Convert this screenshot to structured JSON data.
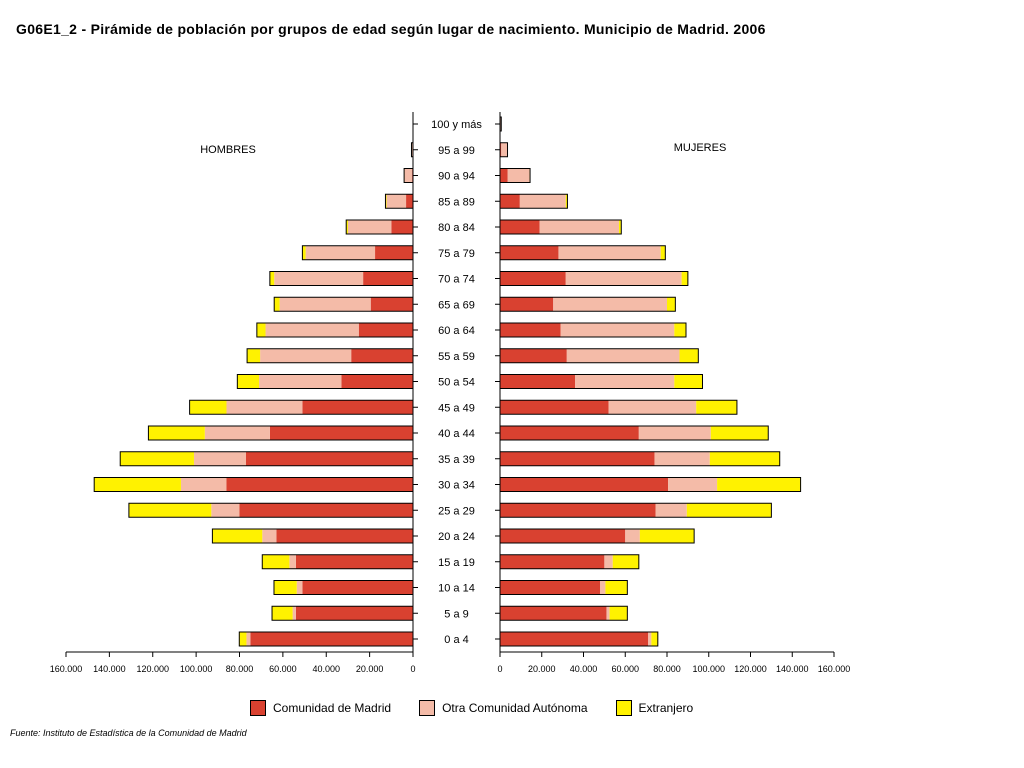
{
  "title": "G06E1_2 - Pirámide de población por grupos de edad según lugar de nacimiento. Municipio de Madrid. 2006",
  "source": "Fuente: Instituto de Estadística de la Comunidad de Madrid",
  "colors": {
    "madrid": "#D94130",
    "otra": "#F4BBA8",
    "extranjero": "#FFF200",
    "outline": "#000000"
  },
  "chart_data": {
    "type": "bar",
    "subtype": "population-pyramid",
    "title": "G06E1_2 - Pirámide de población por grupos de edad según lugar de nacimiento. Municipio de Madrid. 2006",
    "left_label": "HOMBRES",
    "right_label": "MUJERES",
    "categories": [
      "100 y más",
      "95 a 99",
      "90 a 94",
      "85 a 89",
      "80 a 84",
      "75 a 79",
      "70 a 74",
      "65 a 69",
      "60 a 64",
      "55 a 59",
      "50 a 54",
      "45 a 49",
      "40 a  44",
      "35 a 39",
      "30 a 34",
      "25 a 29",
      "20 a 24",
      "15 a 19",
      "10 a 14",
      "5 a 9",
      "0 a 4"
    ],
    "series_names": [
      "Comunidad de Madrid",
      "Otra Comunidad Autónoma",
      "Extranjero"
    ],
    "hombres": {
      "madrid": [
        0,
        0,
        400,
        3200,
        10000,
        17500,
        23000,
        19500,
        25000,
        28500,
        33000,
        51000,
        66000,
        77000,
        86000,
        80000,
        63000,
        54000,
        51000,
        54000,
        75000
      ],
      "otra": [
        0,
        700,
        3500,
        9000,
        20000,
        32000,
        41000,
        42000,
        43000,
        42000,
        38000,
        35000,
        30000,
        24000,
        21000,
        13000,
        6500,
        3000,
        2600,
        1500,
        1800
      ],
      "extranjero": [
        0,
        0,
        200,
        500,
        800,
        1500,
        2000,
        2500,
        4000,
        6000,
        10000,
        17000,
        26000,
        34000,
        40000,
        38000,
        23000,
        12500,
        10500,
        9500,
        3300
      ]
    },
    "mujeres": {
      "madrid": [
        0,
        600,
        3700,
        9500,
        19000,
        28000,
        31500,
        25500,
        29000,
        32000,
        36000,
        52000,
        66500,
        74000,
        80500,
        74500,
        60000,
        50000,
        48000,
        51000,
        71000
      ],
      "otra": [
        600,
        3000,
        10500,
        22000,
        38000,
        49000,
        55500,
        54500,
        54500,
        54000,
        47500,
        42000,
        34500,
        26500,
        23500,
        15000,
        7000,
        4000,
        2500,
        1500,
        1500
      ],
      "extranjero": [
        0,
        0,
        200,
        800,
        1100,
        2200,
        3000,
        4000,
        5600,
        9000,
        13500,
        19500,
        27500,
        33500,
        40000,
        40500,
        26000,
        12500,
        10500,
        8500,
        3100
      ]
    },
    "xlim": [
      0,
      160000
    ],
    "xticks": [
      "160.000",
      "140.000",
      "120.000",
      "100.000",
      "80.000",
      "60.000",
      "40.000",
      "20.000",
      "0"
    ],
    "xticks_right": [
      "0",
      "20.000",
      "40.000",
      "60.000",
      "80.000",
      "100.000",
      "120.000",
      "140.000",
      "160.000"
    ],
    "legend_position": "bottom",
    "grid": false
  }
}
